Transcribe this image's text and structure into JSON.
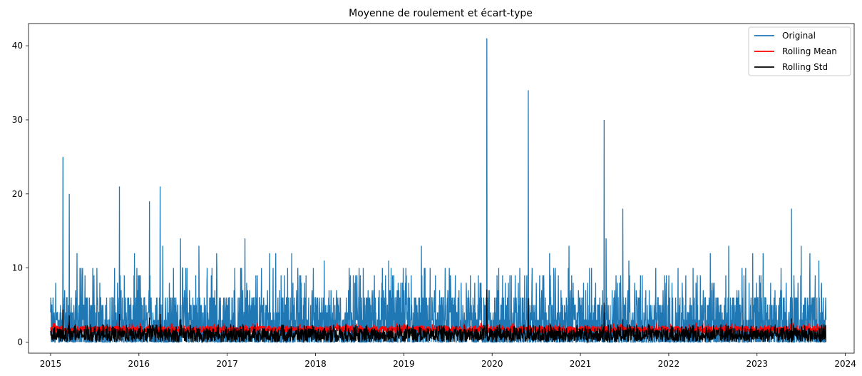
{
  "chart_data": {
    "type": "line",
    "title": "Moyenne de roulement et écart-type",
    "xlabel": "",
    "ylabel": "",
    "xlim": [
      2014.75,
      2024.1
    ],
    "ylim": [
      -1.5,
      43
    ],
    "x_ticks": [
      "2015",
      "2016",
      "2017",
      "2018",
      "2019",
      "2020",
      "2021",
      "2022",
      "2023",
      "2024"
    ],
    "x_tick_values": [
      2015,
      2016,
      2017,
      2018,
      2019,
      2020,
      2021,
      2022,
      2023,
      2024
    ],
    "y_ticks": [
      "0",
      "10",
      "20",
      "30",
      "40"
    ],
    "y_tick_values": [
      0,
      10,
      20,
      30,
      40
    ],
    "x_range": [
      2015.0,
      2023.78
    ],
    "grid": false,
    "legend_position": "top-right",
    "series": [
      {
        "name": "Original",
        "color": "#1f77b4",
        "description_values": {
          "typical_low": 0,
          "typical_high": 7
        },
        "peaks": [
          {
            "x": 2015.14,
            "y": 25
          },
          {
            "x": 2015.21,
            "y": 20
          },
          {
            "x": 2015.3,
            "y": 12
          },
          {
            "x": 2015.78,
            "y": 21
          },
          {
            "x": 2015.95,
            "y": 12
          },
          {
            "x": 2016.12,
            "y": 19
          },
          {
            "x": 2016.24,
            "y": 21
          },
          {
            "x": 2016.27,
            "y": 13
          },
          {
            "x": 2016.47,
            "y": 14
          },
          {
            "x": 2016.68,
            "y": 13
          },
          {
            "x": 2016.88,
            "y": 12
          },
          {
            "x": 2017.2,
            "y": 14
          },
          {
            "x": 2017.48,
            "y": 12
          },
          {
            "x": 2017.55,
            "y": 12
          },
          {
            "x": 2017.73,
            "y": 12
          },
          {
            "x": 2018.1,
            "y": 11
          },
          {
            "x": 2018.83,
            "y": 11
          },
          {
            "x": 2019.2,
            "y": 13
          },
          {
            "x": 2019.94,
            "y": 41
          },
          {
            "x": 2020.41,
            "y": 34
          },
          {
            "x": 2020.65,
            "y": 12
          },
          {
            "x": 2020.87,
            "y": 13
          },
          {
            "x": 2021.27,
            "y": 30
          },
          {
            "x": 2021.29,
            "y": 14
          },
          {
            "x": 2021.48,
            "y": 18
          },
          {
            "x": 2021.55,
            "y": 11
          },
          {
            "x": 2022.47,
            "y": 12
          },
          {
            "x": 2022.68,
            "y": 13
          },
          {
            "x": 2022.95,
            "y": 12
          },
          {
            "x": 2023.07,
            "y": 12
          },
          {
            "x": 2023.39,
            "y": 18
          },
          {
            "x": 2023.5,
            "y": 13
          },
          {
            "x": 2023.6,
            "y": 12
          },
          {
            "x": 2023.7,
            "y": 11
          }
        ]
      },
      {
        "name": "Rolling Mean",
        "color": "#ff0000",
        "description_values": {
          "typical_low": 1.2,
          "typical_high": 2.6
        }
      },
      {
        "name": "Rolling Std",
        "color": "#000000",
        "description_values": {
          "typical_low": 0,
          "typical_high": 2.3
        },
        "peaks": [
          {
            "x": 2015.14,
            "y": 4.4
          },
          {
            "x": 2015.21,
            "y": 3.6
          },
          {
            "x": 2015.78,
            "y": 3.8
          },
          {
            "x": 2016.12,
            "y": 3.3
          },
          {
            "x": 2016.24,
            "y": 3.8
          },
          {
            "x": 2016.47,
            "y": 3.1
          },
          {
            "x": 2019.94,
            "y": 7.1
          },
          {
            "x": 2020.41,
            "y": 5.9
          },
          {
            "x": 2021.27,
            "y": 5.3
          },
          {
            "x": 2021.48,
            "y": 3.1
          },
          {
            "x": 2023.39,
            "y": 3.2
          }
        ]
      }
    ]
  }
}
